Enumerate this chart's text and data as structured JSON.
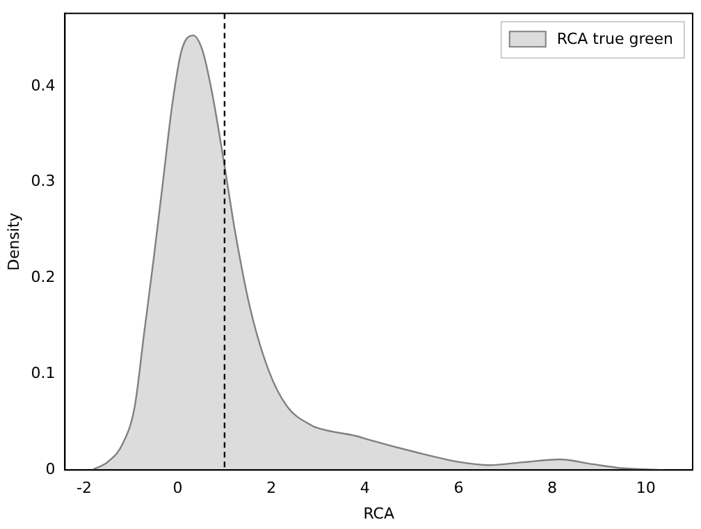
{
  "chart_data": {
    "type": "area",
    "xlabel": "RCA",
    "ylabel": "Density",
    "xlim": [
      -2.41,
      11.0
    ],
    "ylim": [
      0,
      0.476
    ],
    "xticks": [
      -2,
      0,
      2,
      4,
      6,
      8,
      10
    ],
    "yticks": [
      0,
      0.1,
      0.2,
      0.3,
      0.4
    ],
    "grid": false,
    "legend": "top right",
    "series": [
      {
        "name": "RCA true green",
        "color": "#808080",
        "x": [
          -1.83,
          -1.48,
          -1.17,
          -0.92,
          -0.72,
          -0.52,
          -0.32,
          -0.12,
          0.08,
          0.33,
          0.53,
          0.73,
          0.98,
          1.23,
          1.54,
          1.94,
          2.34,
          2.84,
          3.04,
          3.85,
          4.05,
          5.05,
          6.05,
          6.66,
          7.36,
          8.16,
          8.87,
          9.47,
          10.37
        ],
        "values": [
          0.0,
          0.009,
          0.028,
          0.066,
          0.142,
          0.218,
          0.299,
          0.38,
          0.437,
          0.453,
          0.437,
          0.394,
          0.323,
          0.247,
          0.17,
          0.104,
          0.066,
          0.047,
          0.043,
          0.035,
          0.032,
          0.019,
          0.008,
          0.005,
          0.008,
          0.011,
          0.006,
          0.002,
          0.0
        ]
      }
    ],
    "ref_lines": [
      {
        "axis": "x",
        "value": 1,
        "color": "#000000",
        "line_style": "dashed"
      }
    ]
  }
}
